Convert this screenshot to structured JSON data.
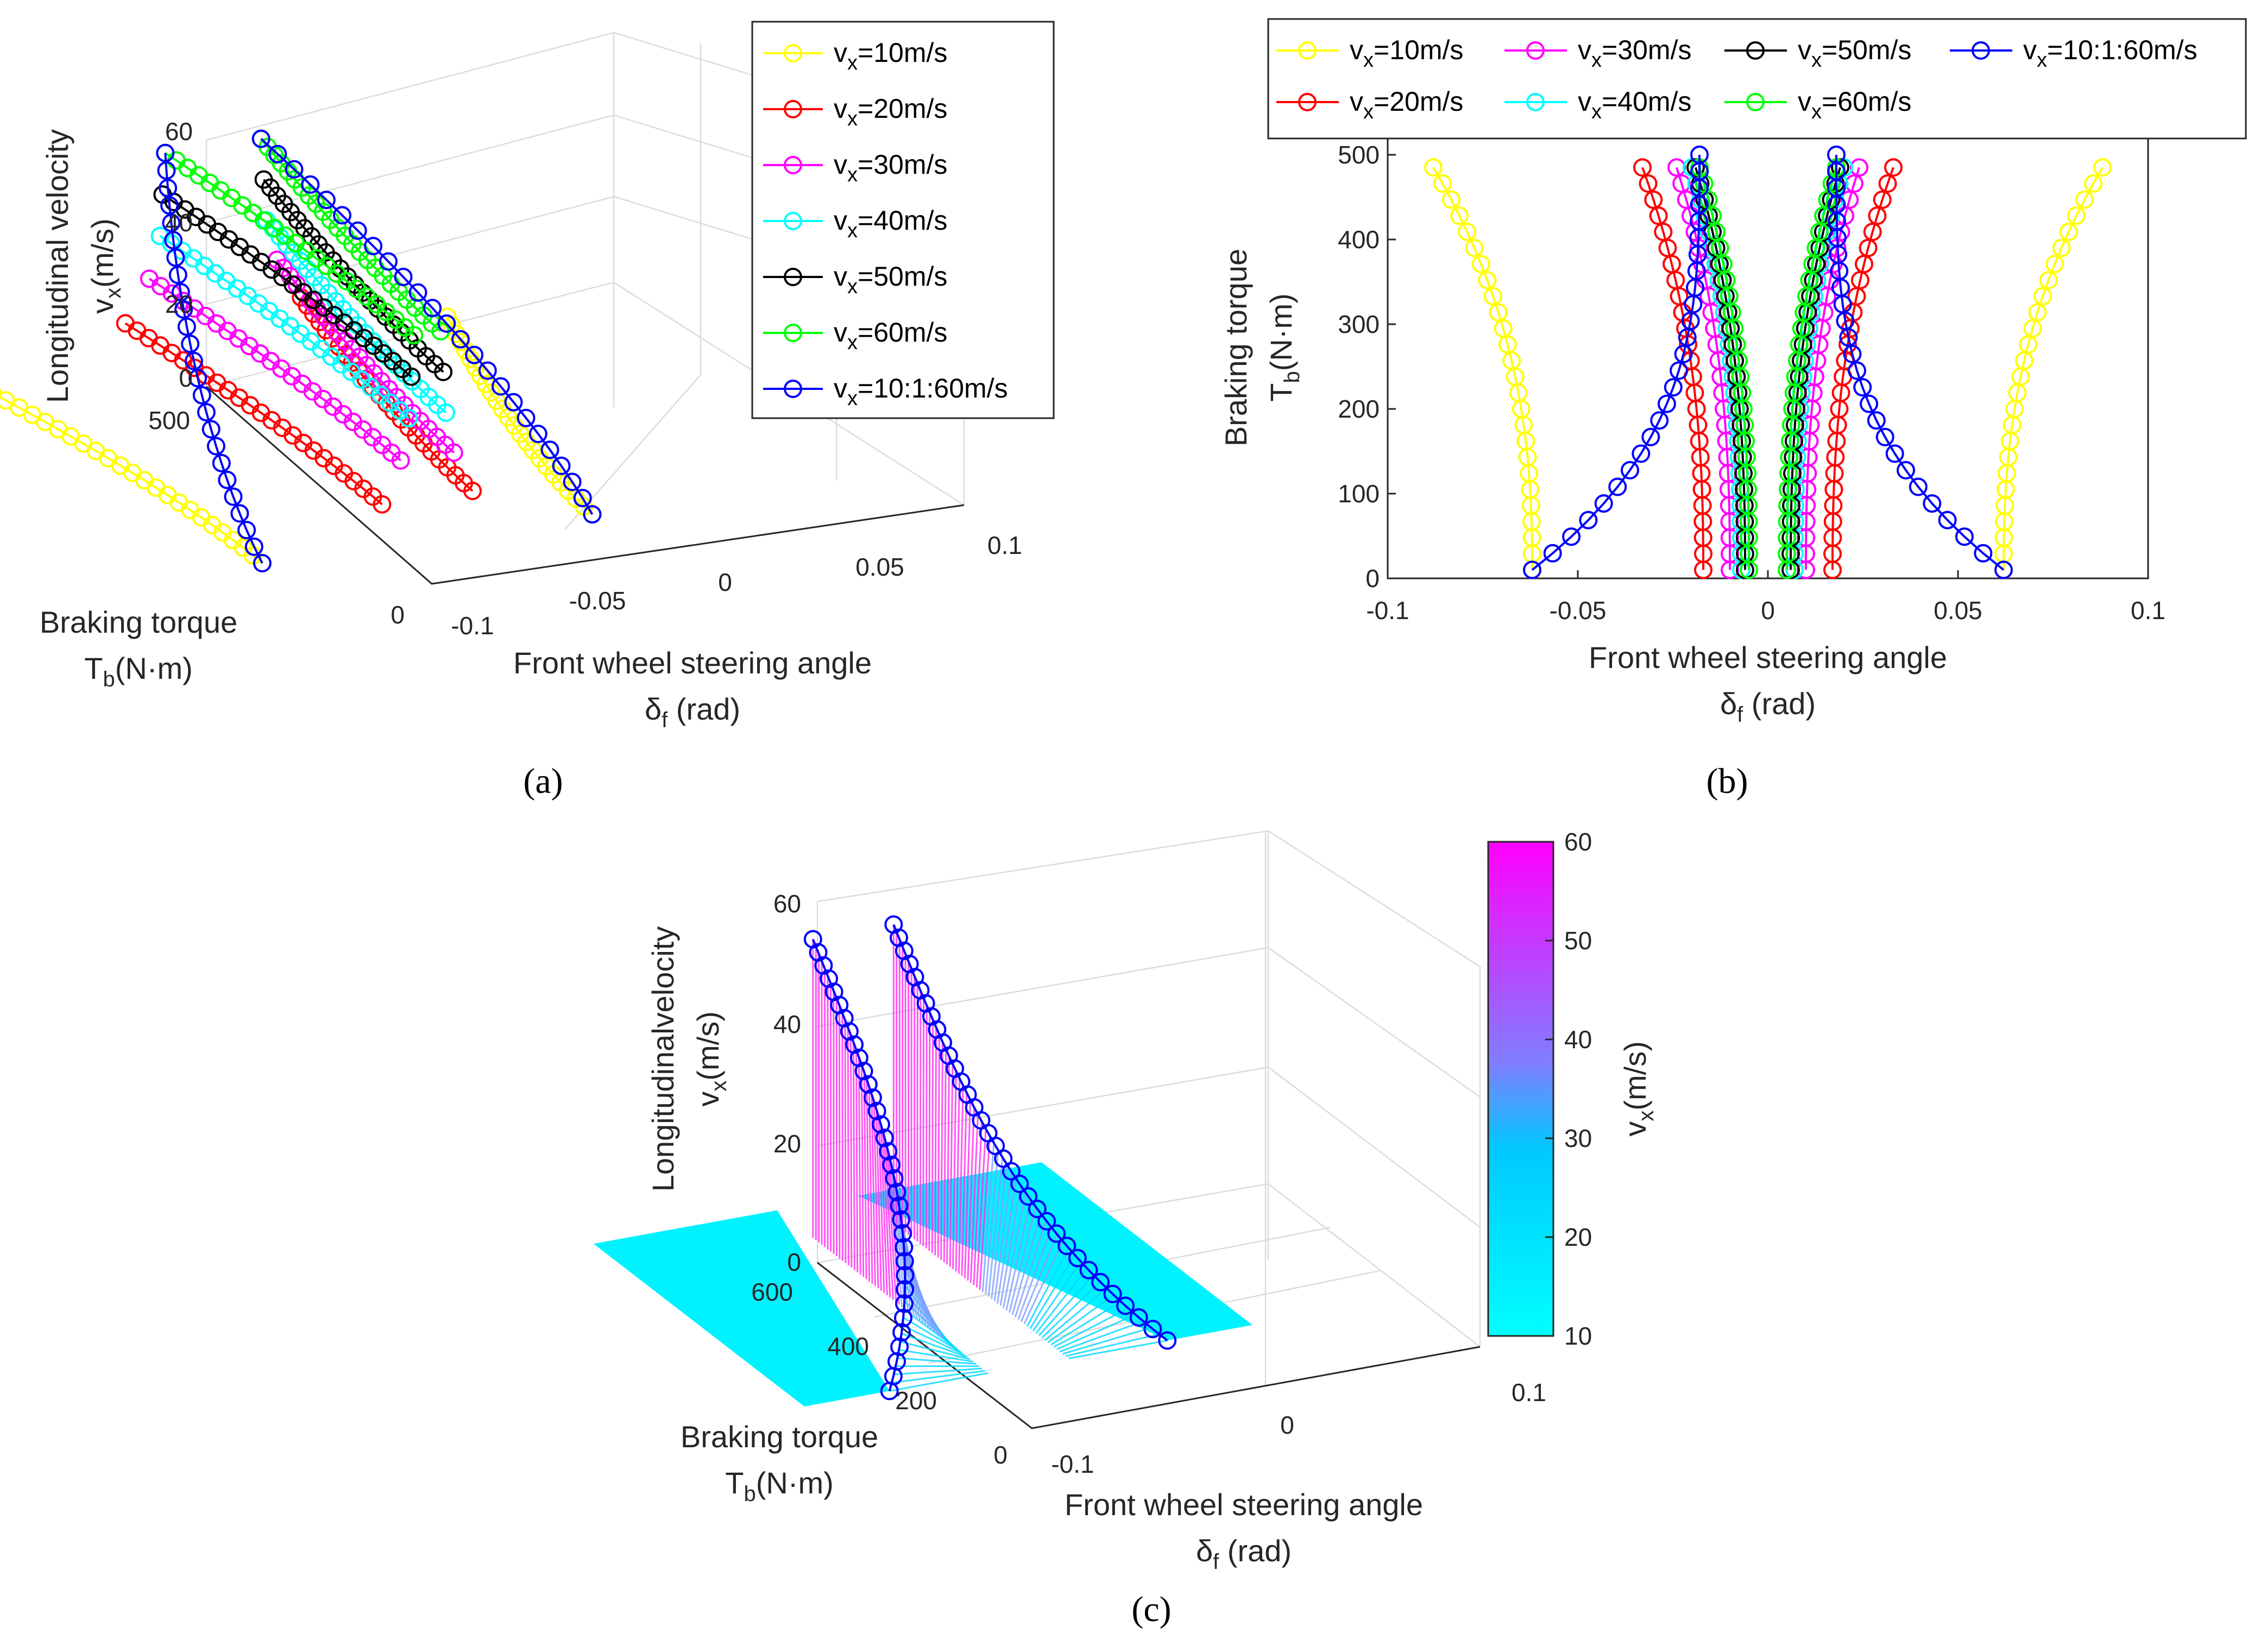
{
  "chart_data": [
    {
      "panel": "a",
      "type": "line3d",
      "caption": "(a)",
      "xlabel": "Front wheel steering angle",
      "xlabel_symbol": "δ",
      "xlabel_sub": "f",
      "xlabel_unit": " (rad)",
      "ylabel": "Braking torque",
      "ylabel_symbol": "T",
      "ylabel_sub": "b",
      "ylabel_unit": "(N·m)",
      "zlabel": "Longitudinal velocity",
      "zlabel_symbol": "v",
      "zlabel_sub": "x",
      "zlabel_unit": "(m/s)",
      "xlim": [
        -0.1,
        0.1
      ],
      "ylim": [
        0,
        500
      ],
      "zlim": [
        0,
        60
      ],
      "xticks": [
        "-0.1",
        "-0.05",
        "0",
        "0.05",
        "0.1"
      ],
      "yticks": [
        "0",
        "500"
      ],
      "zticks": [
        "0",
        "20",
        "40",
        "60"
      ],
      "legend": [
        {
          "label": "x=10m/s",
          "color": "#ffff00"
        },
        {
          "label": "x=20m/s",
          "color": "#ff0000"
        },
        {
          "label": "x=30m/s",
          "color": "#ff00ff"
        },
        {
          "label": "x=40m/s",
          "color": "#00ffff"
        },
        {
          "label": "x=50m/s",
          "color": "#000000"
        },
        {
          "label": "x=60m/s",
          "color": "#00ff00"
        },
        {
          "label": "x=10:1:60m/s",
          "color": "#0000ff"
        }
      ],
      "series": [
        {
          "name": "vx=10m/s",
          "color": "#ffff00",
          "vx": 10,
          "left": {
            "d0": -0.062,
            "d500": -0.088
          },
          "right": {
            "d0": 0.062,
            "d500": 0.088
          }
        },
        {
          "name": "vx=20m/s",
          "color": "#ff0000",
          "vx": 20,
          "left": {
            "d0": -0.017,
            "d500": -0.033
          },
          "right": {
            "d0": 0.017,
            "d500": 0.033
          }
        },
        {
          "name": "vx=30m/s",
          "color": "#ff00ff",
          "vx": 30,
          "left": {
            "d0": -0.01,
            "d500": -0.024
          },
          "right": {
            "d0": 0.01,
            "d500": 0.024
          }
        },
        {
          "name": "vx=40m/s",
          "color": "#00ffff",
          "vx": 40,
          "left": {
            "d0": -0.007,
            "d500": -0.02
          },
          "right": {
            "d0": 0.007,
            "d500": 0.02
          }
        },
        {
          "name": "vx=50m/s",
          "color": "#000000",
          "vx": 50,
          "left": {
            "d0": -0.006,
            "d500": -0.019
          },
          "right": {
            "d0": 0.006,
            "d500": 0.019
          }
        },
        {
          "name": "vx=60m/s",
          "color": "#00ff00",
          "vx": 60,
          "left": {
            "d0": -0.005,
            "d500": -0.018
          },
          "right": {
            "d0": 0.005,
            "d500": 0.018
          }
        },
        {
          "name": "vx=10:1:60m/s",
          "color": "#0000ff",
          "vx": "10:1:60",
          "left": {
            "d0": -0.062,
            "d500": -0.018
          },
          "right": {
            "d0": 0.062,
            "d500": 0.018
          }
        }
      ]
    },
    {
      "panel": "b",
      "type": "line",
      "caption": "(b)",
      "xlabel": "Front wheel steering angle",
      "xlabel_symbol": "δ",
      "xlabel_sub": "f",
      "xlabel_unit": " (rad)",
      "ylabel": "Braking torque",
      "ylabel_symbol": "T",
      "ylabel_sub": "b",
      "ylabel_unit": "(N·m)",
      "xlim": [
        -0.1,
        0.1
      ],
      "ylim": [
        0,
        520
      ],
      "xticks": [
        "-0.1",
        "-0.05",
        "0",
        "0.05",
        "0.1"
      ],
      "yticks": [
        "0",
        "100",
        "200",
        "300",
        "400",
        "500"
      ],
      "legend": [
        {
          "label": "x=10m/s",
          "color": "#ffff00"
        },
        {
          "label": "x=30m/s",
          "color": "#ff00ff"
        },
        {
          "label": "x=50m/s",
          "color": "#000000"
        },
        {
          "label": "x=10:1:60m/s",
          "color": "#0000ff"
        },
        {
          "label": "x=20m/s",
          "color": "#ff0000"
        },
        {
          "label": "x=40m/s",
          "color": "#00ffff"
        },
        {
          "label": "x=60m/s",
          "color": "#00ff00"
        }
      ],
      "series": [
        {
          "name": "vx=10m/s",
          "color": "#ffff00",
          "d0": 0.062,
          "dmax": 0.088,
          "tmax": 485
        },
        {
          "name": "vx=20m/s",
          "color": "#ff0000",
          "d0": 0.017,
          "dmax": 0.033,
          "tmax": 485
        },
        {
          "name": "vx=30m/s",
          "color": "#ff00ff",
          "d0": 0.01,
          "dmax": 0.024,
          "tmax": 485
        },
        {
          "name": "vx=40m/s",
          "color": "#00ffff",
          "d0": 0.007,
          "dmax": 0.02,
          "tmax": 485
        },
        {
          "name": "vx=50m/s",
          "color": "#000000",
          "d0": 0.006,
          "dmax": 0.019,
          "tmax": 485
        },
        {
          "name": "vx=60m/s",
          "color": "#00ff00",
          "d0": 0.005,
          "dmax": 0.018,
          "tmax": 485
        },
        {
          "name": "vx=10:1:60m/s",
          "color": "#0000ff",
          "d0": 0.062,
          "dmax": 0.018,
          "tmax": 500
        }
      ]
    },
    {
      "panel": "c",
      "type": "surface3d",
      "caption": "(c)",
      "xlabel": "Front wheel steering angle",
      "xlabel_symbol": "δ",
      "xlabel_sub": "f",
      "xlabel_unit": " (rad)",
      "ylabel": "Braking torque",
      "ylabel_symbol": "T",
      "ylabel_sub": "b",
      "ylabel_unit": "(N·m)",
      "zlabel": "Longitudinalvelocity",
      "zlabel_symbol": "v",
      "zlabel_sub": "x",
      "zlabel_unit": "(m/s)",
      "xlim": [
        -0.1,
        0.1
      ],
      "ylim": [
        0,
        600
      ],
      "zlim": [
        0,
        60
      ],
      "xticks": [
        "-0.1",
        "0",
        "0.1"
      ],
      "yticks": [
        "0",
        "200",
        "400",
        "600"
      ],
      "zticks": [
        "0",
        "20",
        "40",
        "60"
      ],
      "colorbar": {
        "label_symbol": "v",
        "label_sub": "x",
        "label_unit": "(m/s)",
        "range": [
          10,
          60
        ],
        "ticks": [
          "10",
          "20",
          "30",
          "40",
          "50",
          "60"
        ],
        "colors": [
          "#00ffff",
          "#00c8ff",
          "#ff00ff"
        ]
      }
    }
  ]
}
